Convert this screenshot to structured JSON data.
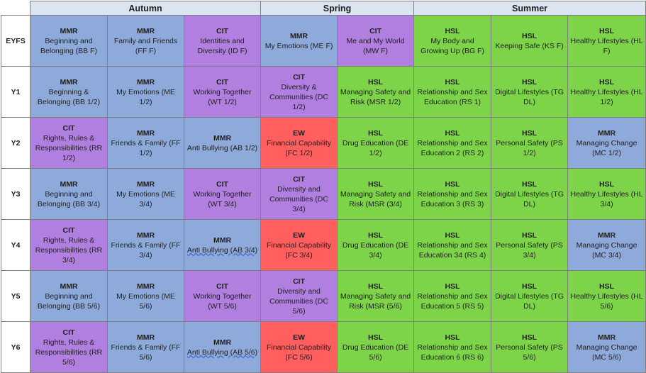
{
  "header": {
    "corner": "",
    "terms": [
      "Autumn",
      "Spring",
      "Summer"
    ]
  },
  "colors": {
    "MMR": "#8eaadb",
    "CIT": "#b07fe0",
    "HSL": "#7ed448",
    "EW": "#ff5f5f"
  },
  "rows": [
    {
      "year": "EYFS",
      "cells": [
        {
          "code": "MMR",
          "text": "Beginning and Belonging (BB F)"
        },
        {
          "code": "MMR",
          "text": "Family and Friends (FF F)"
        },
        {
          "code": "CIT",
          "text": "Identities and Diversity (ID F)"
        },
        {
          "code": "MMR",
          "text": "My Emotions (ME F)"
        },
        {
          "code": "CIT",
          "text": "Me and My World (MW F)"
        },
        {
          "code": "HSL",
          "text": "My Body and Growing Up (BG F)"
        },
        {
          "code": "HSL",
          "text": "Keeping Safe (KS F)"
        },
        {
          "code": "HSL",
          "text": "Healthy Lifestyles (HL F)"
        }
      ]
    },
    {
      "year": "Y1",
      "cells": [
        {
          "code": "MMR",
          "text": "Beginning & Belonging (BB 1/2)"
        },
        {
          "code": "MMR",
          "text": "My Emotions (ME 1/2)"
        },
        {
          "code": "CIT",
          "text": "Working Together (WT 1/2)"
        },
        {
          "code": "CIT",
          "text": "Diversity & Communities (DC 1/2)"
        },
        {
          "code": "HSL",
          "text": "Managing Safety and Risk (MSR 1/2)"
        },
        {
          "code": "HSL",
          "text": "Relationship and Sex Education (RS 1)"
        },
        {
          "code": "HSL",
          "text": "Digital Lifestyles (TG DL)"
        },
        {
          "code": "HSL",
          "text": "Healthy Lifestyles (HL 1/2)"
        }
      ]
    },
    {
      "year": "Y2",
      "cells": [
        {
          "code": "CIT",
          "text": "Rights, Rules & Responsibilities (RR 1/2)"
        },
        {
          "code": "MMR",
          "text": "Friends & Family (FF 1/2)"
        },
        {
          "code": "MMR",
          "text": "Anti Bullying (AB 1/2)"
        },
        {
          "code": "EW",
          "text": "Financial Capability (FC 1/2)"
        },
        {
          "code": "HSL",
          "text": "Drug Education (DE 1/2)"
        },
        {
          "code": "HSL",
          "text": "Relationship and Sex Education 2 (RS 2)"
        },
        {
          "code": "HSL",
          "text": "Personal Safety (PS 1/2)"
        },
        {
          "code": "MMR",
          "text": "Managing Change (MC 1/2)"
        }
      ]
    },
    {
      "year": "Y3",
      "cells": [
        {
          "code": "MMR",
          "text": "Beginning and Belonging (BB 3/4)"
        },
        {
          "code": "MMR",
          "text": "My Emotions (ME 3/4)"
        },
        {
          "code": "CIT",
          "text": "Working Together (WT 3/4)"
        },
        {
          "code": "CIT",
          "text": "Diversity and Communities (DC 3/4)"
        },
        {
          "code": "HSL",
          "text": "Managing Safety and Risk (MSR (3/4)"
        },
        {
          "code": "HSL",
          "text": "Relationship and Sex Education 3 (RS 3)"
        },
        {
          "code": "HSL",
          "text": "Digital Lifestyles (TG DL)"
        },
        {
          "code": "HSL",
          "text": "Healthy Lifestyles (HL 3/4)"
        }
      ]
    },
    {
      "year": "Y4",
      "cells": [
        {
          "code": "CIT",
          "text": "Rights, Rules & Responsibilities (RR 3/4)"
        },
        {
          "code": "MMR",
          "text": "Friends & Family (FF 3/4)"
        },
        {
          "code": "MMR",
          "text": "Anti Bullying (AB 3/4)"
        },
        {
          "code": "EW",
          "text": "Financial Capability (FC 3/4)"
        },
        {
          "code": "HSL",
          "text": "Drug Education (DE 3/4)"
        },
        {
          "code": "HSL",
          "text": "Relationship and Sex Education 34 (RS 4)"
        },
        {
          "code": "HSL",
          "text": "Personal Safety (PS 3/4)"
        },
        {
          "code": "MMR",
          "text": "Managing Change (MC 3/4)"
        }
      ]
    },
    {
      "year": "Y5",
      "cells": [
        {
          "code": "MMR",
          "text": "Beginning and Belonging (BB 5/6)"
        },
        {
          "code": "MMR",
          "text": "My Emotions (ME 5/6)"
        },
        {
          "code": "CIT",
          "text": "Working Together (WT 5/6)"
        },
        {
          "code": "CIT",
          "text": "Diversity and Communities (DC 5/6)"
        },
        {
          "code": "HSL",
          "text": "Managing Safety and Risk (MSR (5/6)"
        },
        {
          "code": "HSL",
          "text": "Relationship and Sex Education 5 (RS 5)"
        },
        {
          "code": "HSL",
          "text": "Digital Lifestyles (TG DL)"
        },
        {
          "code": "HSL",
          "text": "Healthy Lifestyles (HL 5/6)"
        }
      ]
    },
    {
      "year": "Y6",
      "cells": [
        {
          "code": "CIT",
          "text": "Rights, Rules & Responsibilities (RR 5/6)"
        },
        {
          "code": "MMR",
          "text": "Friends & Family (FF 5/6)"
        },
        {
          "code": "MMR",
          "text": "Anti Bullying (AB 5/6)"
        },
        {
          "code": "EW",
          "text": "Financial Capability (FC 5/6)"
        },
        {
          "code": "HSL",
          "text": "Drug Education (DE 5/6)"
        },
        {
          "code": "HSL",
          "text": "Relationship and Sex Education 6 (RS 6)"
        },
        {
          "code": "HSL",
          "text": "Personal Safety (PS 5/6)"
        },
        {
          "code": "MMR",
          "text": "Managing Change (MC 5/6)"
        }
      ]
    }
  ]
}
